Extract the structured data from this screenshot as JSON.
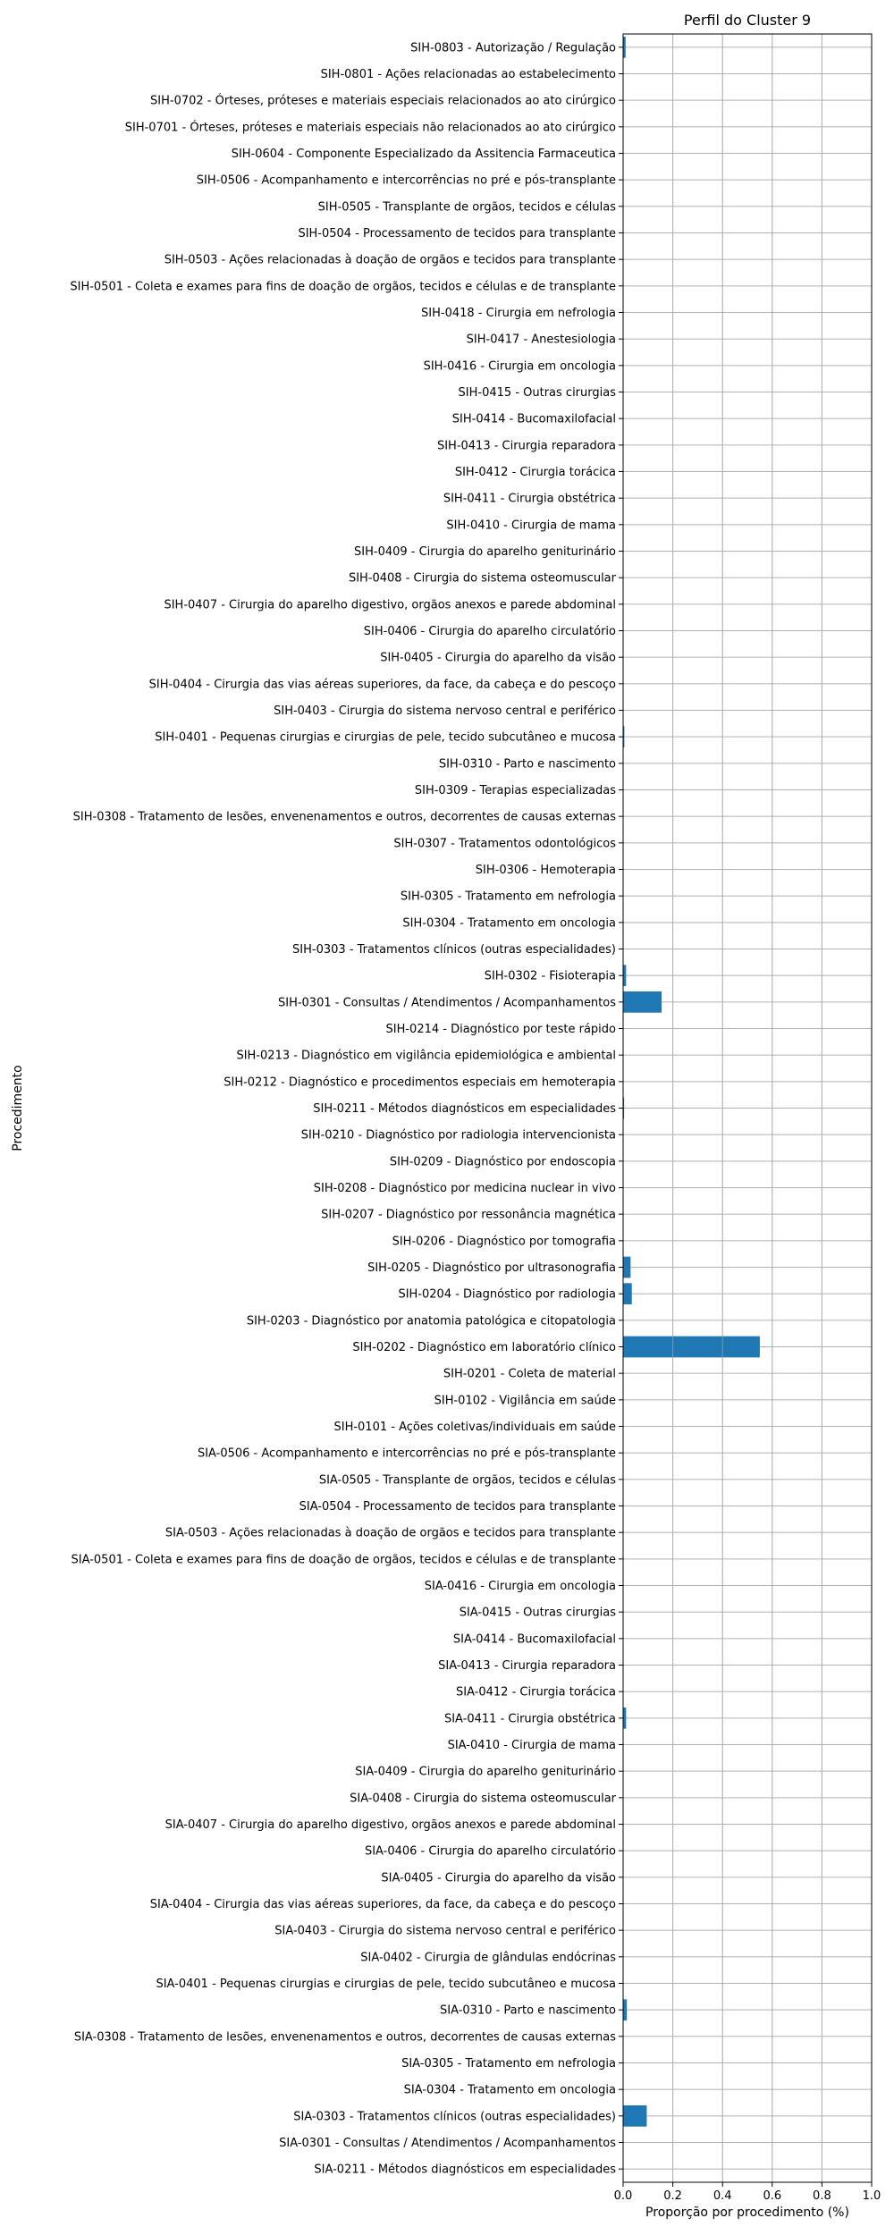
{
  "chart_data": {
    "type": "bar",
    "orientation": "horizontal",
    "title": "Perfil do Cluster 9",
    "xlabel": "Proporção por procedimento (%)",
    "ylabel": "Procedimento",
    "xlim": [
      0,
      1.0
    ],
    "xticks": [
      "0.0",
      "0.2",
      "0.4",
      "0.6",
      "0.8",
      "1.0"
    ],
    "grid": true,
    "bar_color": "#1f77b4",
    "categories": [
      "SIH-0803 - Autorização / Regulação",
      "SIH-0801 - Ações relacionadas ao estabelecimento",
      "SIH-0702 - Órteses, próteses e materiais especiais relacionados ao ato cirúrgico",
      "SIH-0701 - Órteses, próteses e materiais especiais não relacionados ao ato cirúrgico",
      "SIH-0604 - Componente Especializado da Assitencia Farmaceutica",
      "SIH-0506 - Acompanhamento e intercorrências no pré e pós-transplante",
      "SIH-0505 - Transplante de orgãos, tecidos e células",
      "SIH-0504 - Processamento de tecidos para transplante",
      "SIH-0503 - Ações relacionadas à doação de orgãos e tecidos para transplante",
      "SIH-0501 - Coleta e exames para fins de doação de orgãos, tecidos e células e de transplante",
      "SIH-0418 - Cirurgia em nefrologia",
      "SIH-0417 - Anestesiologia",
      "SIH-0416 - Cirurgia em oncologia",
      "SIH-0415 - Outras cirurgias",
      "SIH-0414 - Bucomaxilofacial",
      "SIH-0413 - Cirurgia reparadora",
      "SIH-0412 - Cirurgia torácica",
      "SIH-0411 - Cirurgia obstétrica",
      "SIH-0410 - Cirurgia de mama",
      "SIH-0409 - Cirurgia do aparelho geniturinário",
      "SIH-0408 - Cirurgia do sistema osteomuscular",
      "SIH-0407 - Cirurgia do aparelho digestivo, orgãos anexos e parede abdominal",
      "SIH-0406 - Cirurgia do aparelho circulatório",
      "SIH-0405 - Cirurgia do aparelho da visão",
      "SIH-0404 - Cirurgia das vias aéreas superiores, da face, da cabeça e do pescoço",
      "SIH-0403 - Cirurgia do sistema nervoso central e periférico",
      "SIH-0401 - Pequenas cirurgias e cirurgias de pele, tecido subcutâneo e mucosa",
      "SIH-0310 - Parto e nascimento",
      "SIH-0309 - Terapias especializadas",
      "SIH-0308 - Tratamento de lesões, envenenamentos e outros, decorrentes de causas externas",
      "SIH-0307 - Tratamentos odontológicos",
      "SIH-0306 - Hemoterapia",
      "SIH-0305 - Tratamento em nefrologia",
      "SIH-0304 - Tratamento em oncologia",
      "SIH-0303 - Tratamentos clínicos (outras especialidades)",
      "SIH-0302 - Fisioterapia",
      "SIH-0301 - Consultas / Atendimentos / Acompanhamentos",
      "SIH-0214 - Diagnóstico por teste rápido",
      "SIH-0213 - Diagnóstico em vigilância epidemiológica e ambiental",
      "SIH-0212 - Diagnóstico e procedimentos especiais em hemoterapia",
      "SIH-0211 - Métodos diagnósticos em especialidades",
      "SIH-0210 - Diagnóstico por radiologia intervencionista",
      "SIH-0209 - Diagnóstico por endoscopia",
      "SIH-0208 - Diagnóstico por medicina nuclear in vivo",
      "SIH-0207 - Diagnóstico por ressonância magnética",
      "SIH-0206 - Diagnóstico por tomografia",
      "SIH-0205 - Diagnóstico por ultrasonografia",
      "SIH-0204 - Diagnóstico por radiologia",
      "SIH-0203 - Diagnóstico por anatomia patológica e citopatologia",
      "SIH-0202 - Diagnóstico em laboratório clínico",
      "SIH-0201 - Coleta de material",
      "SIH-0102 - Vigilância em saúde",
      "SIH-0101 - Ações coletivas/individuais em saúde",
      "SIA-0506 - Acompanhamento e intercorrências no pré e pós-transplante",
      "SIA-0505 - Transplante de orgãos, tecidos e células",
      "SIA-0504 - Processamento de tecidos para transplante",
      "SIA-0503 - Ações relacionadas à doação de orgãos e tecidos para transplante",
      "SIA-0501 - Coleta e exames para fins de doação de orgãos, tecidos e células e de transplante",
      "SIA-0416 - Cirurgia em oncologia",
      "SIA-0415 - Outras cirurgias",
      "SIA-0414 - Bucomaxilofacial",
      "SIA-0413 - Cirurgia reparadora",
      "SIA-0412 - Cirurgia torácica",
      "SIA-0411 - Cirurgia obstétrica",
      "SIA-0410 - Cirurgia de mama",
      "SIA-0409 - Cirurgia do aparelho geniturinário",
      "SIA-0408 - Cirurgia do sistema osteomuscular",
      "SIA-0407 - Cirurgia do aparelho digestivo, orgãos anexos e parede abdominal",
      "SIA-0406 - Cirurgia do aparelho circulatório",
      "SIA-0405 - Cirurgia do aparelho da visão",
      "SIA-0404 - Cirurgia das vias aéreas superiores, da face, da cabeça e do pescoço",
      "SIA-0403 - Cirurgia do sistema nervoso central e periférico",
      "SIA-0402 - Cirurgia de glândulas endócrinas",
      "SIA-0401 - Pequenas cirurgias e cirurgias de pele, tecido subcutâneo e mucosa",
      "SIA-0310 - Parto e nascimento",
      "SIA-0308 - Tratamento de lesões, envenenamentos e outros, decorrentes de causas externas",
      "SIA-0305 - Tratamento em nefrologia",
      "SIA-0304 - Tratamento em oncologia",
      "SIA-0303 - Tratamentos clínicos (outras especialidades)",
      "SIA-0301 - Consultas / Atendimentos / Acompanhamentos",
      "SIA-0211 - Métodos diagnósticos em especialidades"
    ],
    "values": [
      0.01,
      0,
      0,
      0,
      0,
      0,
      0,
      0,
      0,
      0,
      0,
      0,
      0,
      0,
      0,
      0,
      0,
      0,
      0,
      0,
      0,
      0,
      0,
      0,
      0,
      0,
      0.005,
      0,
      0,
      0,
      0,
      0,
      0,
      0,
      0,
      0.012,
      0.155,
      0,
      0,
      0,
      0.004,
      0,
      0,
      0,
      0,
      0,
      0.03,
      0.035,
      0,
      0.55,
      0,
      0,
      0,
      0,
      0,
      0,
      0,
      0,
      0,
      0,
      0,
      0,
      0,
      0.012,
      0,
      0,
      0,
      0,
      0,
      0,
      0,
      0,
      0,
      0,
      0.015,
      0,
      0,
      0,
      0.095,
      0,
      0
    ]
  }
}
